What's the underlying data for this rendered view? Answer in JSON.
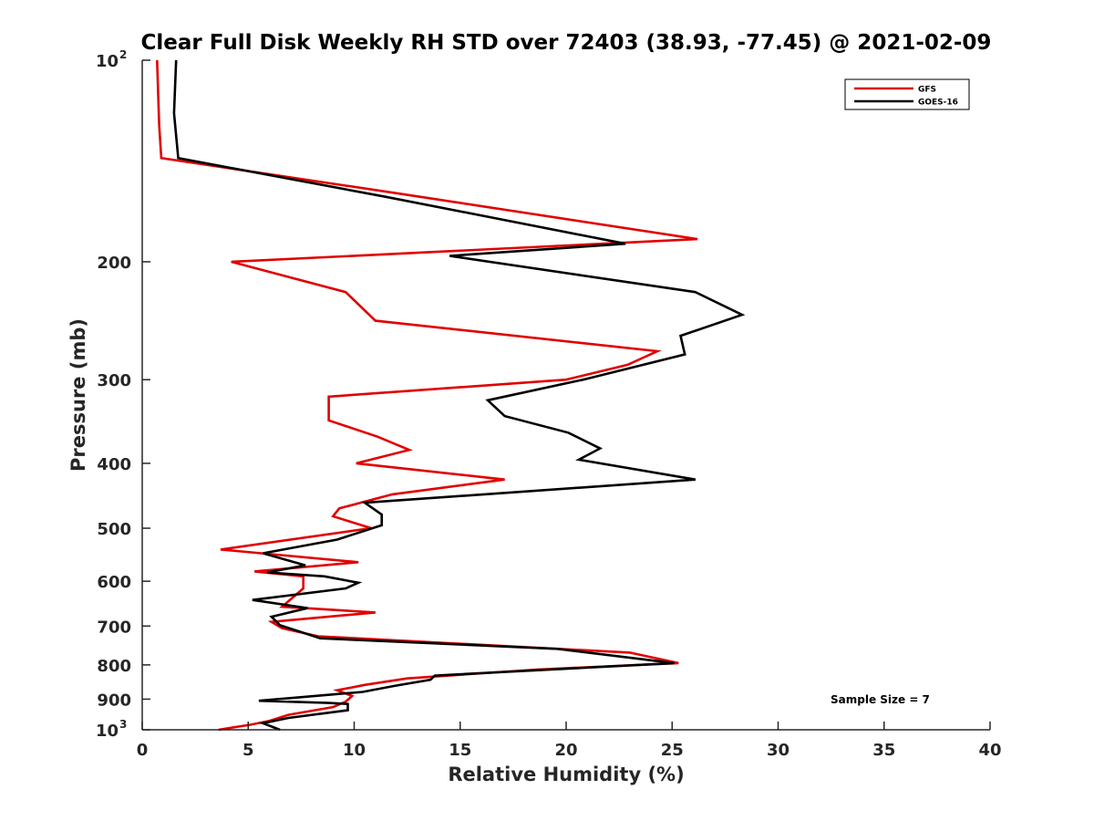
{
  "chart_data": {
    "type": "line",
    "title": "Clear Full Disk Weekly RH STD over 72403 (38.93, -77.45) @ 2021-02-09",
    "xlabel": "Relative Humidity (%)",
    "ylabel": "Pressure (mb)",
    "xlim": [
      0,
      40
    ],
    "ylim": [
      100,
      1000
    ],
    "y_scale": "log",
    "y_reversed": true,
    "grid": false,
    "legend_position": "top-right",
    "annotation": "Sample Size = 7",
    "x_ticks": [
      "0",
      "5",
      "10",
      "15",
      "20",
      "25",
      "30",
      "35",
      "40"
    ],
    "y_ticks": [
      {
        "value": 100,
        "base": "10",
        "exp": "2"
      },
      {
        "value": 200,
        "label": "200"
      },
      {
        "value": 300,
        "label": "300"
      },
      {
        "value": 400,
        "label": "400"
      },
      {
        "value": 500,
        "label": "500"
      },
      {
        "value": 600,
        "label": "600"
      },
      {
        "value": 700,
        "label": "700"
      },
      {
        "value": 800,
        "label": "800"
      },
      {
        "value": 900,
        "label": "900"
      },
      {
        "value": 1000,
        "base": "10",
        "exp": "3"
      }
    ],
    "series": [
      {
        "name": "GFS",
        "color": "#e00000",
        "points": [
          [
            0.7,
            100
          ],
          [
            0.8,
            125
          ],
          [
            0.9,
            140
          ],
          [
            12,
            158
          ],
          [
            26.2,
            185
          ],
          [
            4.2,
            200
          ],
          [
            9.6,
            222
          ],
          [
            11,
            245
          ],
          [
            24.3,
            272
          ],
          [
            22.9,
            285
          ],
          [
            20,
            300
          ],
          [
            8.8,
            318
          ],
          [
            8.8,
            345
          ],
          [
            11.1,
            365
          ],
          [
            12.6,
            382
          ],
          [
            10.1,
            400
          ],
          [
            17.1,
            423
          ],
          [
            11.8,
            445
          ],
          [
            9.3,
            467
          ],
          [
            9,
            480
          ],
          [
            10.8,
            500
          ],
          [
            3.7,
            538
          ],
          [
            10.2,
            562
          ],
          [
            5.3,
            580
          ],
          [
            7.6,
            590
          ],
          [
            7.6,
            615
          ],
          [
            6.6,
            655
          ],
          [
            11,
            668
          ],
          [
            6.1,
            690
          ],
          [
            6.6,
            705
          ],
          [
            8.3,
            725
          ],
          [
            23,
            767
          ],
          [
            25.3,
            795
          ],
          [
            18.6,
            813
          ],
          [
            12.5,
            838
          ],
          [
            10.5,
            857
          ],
          [
            9.2,
            873
          ],
          [
            9.9,
            890
          ],
          [
            9.6,
            908
          ],
          [
            9,
            925
          ],
          [
            6.9,
            950
          ],
          [
            6,
            970
          ],
          [
            5.1,
            983
          ],
          [
            3.6,
            1000
          ]
        ]
      },
      {
        "name": "GOES-16",
        "color": "#000000",
        "points": [
          [
            1.6,
            100
          ],
          [
            1.5,
            120
          ],
          [
            1.7,
            140
          ],
          [
            11.5,
            160
          ],
          [
            22.8,
            188
          ],
          [
            14.5,
            196
          ],
          [
            26.1,
            222
          ],
          [
            28.3,
            240
          ],
          [
            25.4,
            258
          ],
          [
            25.6,
            275
          ],
          [
            20.8,
            300
          ],
          [
            16.3,
            322
          ],
          [
            17.1,
            340
          ],
          [
            20.1,
            360
          ],
          [
            21.6,
            380
          ],
          [
            20.6,
            395
          ],
          [
            26.1,
            423
          ],
          [
            10.5,
            458
          ],
          [
            11.3,
            477
          ],
          [
            11.3,
            495
          ],
          [
            9.2,
            520
          ],
          [
            5.7,
            545
          ],
          [
            7.7,
            568
          ],
          [
            5.9,
            582
          ],
          [
            8.6,
            590
          ],
          [
            10.2,
            603
          ],
          [
            9.6,
            615
          ],
          [
            5.2,
            640
          ],
          [
            7.8,
            658
          ],
          [
            6.1,
            678
          ],
          [
            6.5,
            698
          ],
          [
            8.4,
            730
          ],
          [
            19.6,
            757
          ],
          [
            25.1,
            795
          ],
          [
            13.8,
            830
          ],
          [
            13.6,
            842
          ],
          [
            11.9,
            860
          ],
          [
            10.4,
            878
          ],
          [
            5.5,
            905
          ],
          [
            8.8,
            912
          ],
          [
            9.7,
            915
          ],
          [
            9.7,
            935
          ],
          [
            6.9,
            960
          ],
          [
            5.7,
            978
          ],
          [
            6.5,
            1000
          ]
        ]
      }
    ]
  }
}
